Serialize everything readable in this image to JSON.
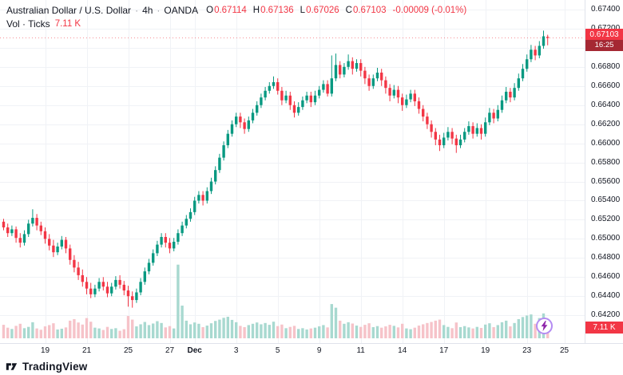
{
  "header": {
    "symbol": "Australian Dollar / U.S. Dollar",
    "sep": "·",
    "interval": "4h",
    "venue": "OANDA",
    "ohlc": {
      "o_label": "O",
      "o": "0.67114",
      "h_label": "H",
      "h": "0.67136",
      "l_label": "L",
      "l": "0.67026",
      "c_label": "C",
      "c": "0.67103",
      "change": "-0.00009 (-0.01%)"
    },
    "indicator": {
      "name": "Vol · Ticks",
      "value": "7.11 K"
    }
  },
  "price_axis": {
    "last_price": "0.67103",
    "countdown": "16:25",
    "volume_badge": "7.11 K"
  },
  "footer": {
    "brand": "TradingView"
  },
  "colors": {
    "up": "#089981",
    "down": "#f23645",
    "vol_up": "#a8d9d0",
    "vol_down": "#f6c3c9",
    "grid": "#f0f2f6",
    "axis_text": "#131722",
    "label_bg": "#f23645"
  },
  "chart_data": {
    "type": "candlestick",
    "title": "AUD/USD · 4h · OANDA",
    "pair": "AUD/USD",
    "interval": "4h",
    "legend": [
      "open",
      "high",
      "low",
      "close",
      "tick_volume"
    ],
    "price_ticks": [
      "0.67400",
      "0.67200",
      "0.67000",
      "0.66800",
      "0.66600",
      "0.66400",
      "0.66200",
      "0.66000",
      "0.65800",
      "0.65600",
      "0.65400",
      "0.65200",
      "0.65000",
      "0.64800",
      "0.64600",
      "0.64400",
      "0.64200"
    ],
    "x_ticks": [
      {
        "label": "19",
        "i": 10
      },
      {
        "label": "21",
        "i": 20
      },
      {
        "label": "25",
        "i": 30
      },
      {
        "label": "27",
        "i": 40
      },
      {
        "label": "Dec",
        "i": 46,
        "bold": true
      },
      {
        "label": "3",
        "i": 56
      },
      {
        "label": "5",
        "i": 66
      },
      {
        "label": "9",
        "i": 76
      },
      {
        "label": "11",
        "i": 86
      },
      {
        "label": "14",
        "i": 96
      },
      {
        "label": "17",
        "i": 106
      },
      {
        "label": "19",
        "i": 116
      },
      {
        "label": "23",
        "i": 126
      },
      {
        "label": "25",
        "i": 135
      }
    ],
    "last": {
      "open": 0.67114,
      "high": 0.67136,
      "low": 0.67026,
      "close": 0.67103,
      "volume": 7110
    },
    "candles": [
      [
        0.6518,
        0.6521,
        0.6509,
        0.6512,
        5200
      ],
      [
        0.6512,
        0.6516,
        0.6502,
        0.6506,
        4100
      ],
      [
        0.6506,
        0.6514,
        0.6503,
        0.651,
        3600
      ],
      [
        0.651,
        0.6513,
        0.6496,
        0.6501,
        4800
      ],
      [
        0.6501,
        0.6506,
        0.6491,
        0.6496,
        5600
      ],
      [
        0.6496,
        0.6509,
        0.6493,
        0.6505,
        3900
      ],
      [
        0.6505,
        0.652,
        0.6502,
        0.6516,
        4400
      ],
      [
        0.6516,
        0.6531,
        0.6513,
        0.6522,
        6200
      ],
      [
        0.6522,
        0.6526,
        0.6509,
        0.6514,
        3800
      ],
      [
        0.6514,
        0.6518,
        0.6504,
        0.6508,
        3300
      ],
      [
        0.6508,
        0.6512,
        0.6495,
        0.65,
        4600
      ],
      [
        0.65,
        0.6505,
        0.6488,
        0.6493,
        5100
      ],
      [
        0.6493,
        0.6499,
        0.6481,
        0.6486,
        5800
      ],
      [
        0.6486,
        0.6496,
        0.6483,
        0.6492,
        3400
      ],
      [
        0.6492,
        0.6503,
        0.6489,
        0.6499,
        3700
      ],
      [
        0.6499,
        0.6502,
        0.6485,
        0.649,
        4200
      ],
      [
        0.649,
        0.6494,
        0.6473,
        0.6478,
        6800
      ],
      [
        0.6478,
        0.6483,
        0.6465,
        0.647,
        7400
      ],
      [
        0.647,
        0.6476,
        0.6457,
        0.6462,
        6100
      ],
      [
        0.6462,
        0.6468,
        0.645,
        0.6455,
        5300
      ],
      [
        0.6455,
        0.646,
        0.6442,
        0.6448,
        7800
      ],
      [
        0.6448,
        0.6454,
        0.6438,
        0.6442,
        6400
      ],
      [
        0.6442,
        0.6452,
        0.6439,
        0.6448,
        4100
      ],
      [
        0.6448,
        0.6459,
        0.6445,
        0.6455,
        3800
      ],
      [
        0.6455,
        0.646,
        0.6446,
        0.645,
        3200
      ],
      [
        0.645,
        0.6455,
        0.6439,
        0.6443,
        4400
      ],
      [
        0.6443,
        0.6454,
        0.644,
        0.645,
        3600
      ],
      [
        0.645,
        0.6461,
        0.6447,
        0.6457,
        3900
      ],
      [
        0.6457,
        0.6462,
        0.6448,
        0.6452,
        2900
      ],
      [
        0.6452,
        0.6456,
        0.6441,
        0.6446,
        3500
      ],
      [
        0.6446,
        0.6451,
        0.6429,
        0.644,
        8600
      ],
      [
        0.644,
        0.6445,
        0.6428,
        0.6436,
        7200
      ],
      [
        0.6436,
        0.6448,
        0.6433,
        0.6444,
        4600
      ],
      [
        0.6444,
        0.6459,
        0.6441,
        0.6455,
        5400
      ],
      [
        0.6455,
        0.647,
        0.6452,
        0.6466,
        6300
      ],
      [
        0.6466,
        0.6479,
        0.6463,
        0.6475,
        5100
      ],
      [
        0.6475,
        0.6489,
        0.6472,
        0.6485,
        5700
      ],
      [
        0.6485,
        0.6498,
        0.6482,
        0.6494,
        6600
      ],
      [
        0.6494,
        0.6506,
        0.6491,
        0.6502,
        5900
      ],
      [
        0.6502,
        0.6506,
        0.6491,
        0.6496,
        4200
      ],
      [
        0.6496,
        0.6501,
        0.6485,
        0.649,
        4700
      ],
      [
        0.649,
        0.6501,
        0.6487,
        0.6497,
        3800
      ],
      [
        0.6497,
        0.651,
        0.6494,
        0.6506,
        28400
      ],
      [
        0.6506,
        0.6518,
        0.6503,
        0.6514,
        12600
      ],
      [
        0.6514,
        0.6525,
        0.6511,
        0.6521,
        6800
      ],
      [
        0.6521,
        0.6532,
        0.6518,
        0.6528,
        5400
      ],
      [
        0.6528,
        0.6544,
        0.6525,
        0.654,
        6100
      ],
      [
        0.654,
        0.655,
        0.6537,
        0.6546,
        5600
      ],
      [
        0.6546,
        0.655,
        0.6535,
        0.654,
        4300
      ],
      [
        0.654,
        0.6554,
        0.6537,
        0.655,
        4900
      ],
      [
        0.655,
        0.6564,
        0.6547,
        0.656,
        5800
      ],
      [
        0.656,
        0.6576,
        0.6557,
        0.6572,
        6700
      ],
      [
        0.6572,
        0.6589,
        0.6569,
        0.6585,
        7200
      ],
      [
        0.6585,
        0.6602,
        0.6582,
        0.6598,
        7900
      ],
      [
        0.6598,
        0.6614,
        0.6595,
        0.661,
        8300
      ],
      [
        0.661,
        0.6624,
        0.6607,
        0.662,
        7100
      ],
      [
        0.662,
        0.6632,
        0.6617,
        0.6628,
        6200
      ],
      [
        0.6628,
        0.6632,
        0.6616,
        0.6622,
        4800
      ],
      [
        0.6622,
        0.6626,
        0.661,
        0.6615,
        4300
      ],
      [
        0.6615,
        0.6628,
        0.6612,
        0.6624,
        5100
      ],
      [
        0.6624,
        0.6636,
        0.6621,
        0.6632,
        5600
      ],
      [
        0.6632,
        0.6644,
        0.6629,
        0.664,
        6100
      ],
      [
        0.664,
        0.6652,
        0.6637,
        0.6648,
        5400
      ],
      [
        0.6648,
        0.6659,
        0.6645,
        0.6655,
        5900
      ],
      [
        0.6655,
        0.6664,
        0.6652,
        0.666,
        5200
      ],
      [
        0.666,
        0.667,
        0.6657,
        0.6664,
        6400
      ],
      [
        0.6664,
        0.6668,
        0.6651,
        0.6655,
        4700
      ],
      [
        0.6655,
        0.6659,
        0.664,
        0.6645,
        5300
      ],
      [
        0.6645,
        0.6655,
        0.6642,
        0.665,
        3900
      ],
      [
        0.665,
        0.6654,
        0.6635,
        0.664,
        4400
      ],
      [
        0.664,
        0.6644,
        0.6627,
        0.6632,
        4800
      ],
      [
        0.6632,
        0.6643,
        0.6629,
        0.6638,
        3600
      ],
      [
        0.6638,
        0.6649,
        0.6635,
        0.6645,
        3900
      ],
      [
        0.6645,
        0.6654,
        0.6642,
        0.665,
        3400
      ],
      [
        0.665,
        0.6654,
        0.6638,
        0.6643,
        3800
      ],
      [
        0.6643,
        0.6655,
        0.664,
        0.665,
        4100
      ],
      [
        0.665,
        0.666,
        0.6647,
        0.6656,
        4600
      ],
      [
        0.6656,
        0.6666,
        0.6653,
        0.6662,
        5100
      ],
      [
        0.6662,
        0.6666,
        0.6649,
        0.6652,
        4200
      ],
      [
        0.6652,
        0.6692,
        0.6649,
        0.6668,
        13200
      ],
      [
        0.6668,
        0.6694,
        0.6665,
        0.6682,
        11800
      ],
      [
        0.6682,
        0.6686,
        0.6668,
        0.6672,
        6800
      ],
      [
        0.6672,
        0.6684,
        0.6669,
        0.668,
        5600
      ],
      [
        0.668,
        0.6693,
        0.6677,
        0.6686,
        6200
      ],
      [
        0.6686,
        0.669,
        0.6672,
        0.6678,
        5700
      ],
      [
        0.6678,
        0.6688,
        0.6675,
        0.6684,
        4900
      ],
      [
        0.6684,
        0.6688,
        0.667,
        0.6676,
        4400
      ],
      [
        0.6676,
        0.668,
        0.6662,
        0.6668,
        5200
      ],
      [
        0.6668,
        0.6672,
        0.6655,
        0.666,
        5800
      ],
      [
        0.666,
        0.6672,
        0.6657,
        0.6668,
        4300
      ],
      [
        0.6668,
        0.6679,
        0.6665,
        0.6674,
        4700
      ],
      [
        0.6674,
        0.6678,
        0.666,
        0.6666,
        4100
      ],
      [
        0.6666,
        0.667,
        0.6652,
        0.6658,
        4600
      ],
      [
        0.6658,
        0.6662,
        0.6644,
        0.665,
        5200
      ],
      [
        0.665,
        0.6661,
        0.6647,
        0.6656,
        4800
      ],
      [
        0.6656,
        0.666,
        0.6642,
        0.6648,
        4200
      ],
      [
        0.6648,
        0.6652,
        0.6634,
        0.664,
        5600
      ],
      [
        0.664,
        0.6651,
        0.6637,
        0.6646,
        3800
      ],
      [
        0.6646,
        0.6656,
        0.6643,
        0.6652,
        3500
      ],
      [
        0.6652,
        0.6656,
        0.6639,
        0.6644,
        4100
      ],
      [
        0.6644,
        0.6648,
        0.6631,
        0.6636,
        4900
      ],
      [
        0.6636,
        0.664,
        0.6623,
        0.6628,
        5400
      ],
      [
        0.6628,
        0.6632,
        0.6615,
        0.662,
        5900
      ],
      [
        0.662,
        0.6624,
        0.6606,
        0.6612,
        6300
      ],
      [
        0.6612,
        0.6616,
        0.6598,
        0.6604,
        6800
      ],
      [
        0.6604,
        0.6609,
        0.6592,
        0.6598,
        7200
      ],
      [
        0.6598,
        0.6611,
        0.6595,
        0.6606,
        5100
      ],
      [
        0.6606,
        0.6617,
        0.6603,
        0.6612,
        4400
      ],
      [
        0.6612,
        0.6616,
        0.6599,
        0.6605,
        3900
      ],
      [
        0.6605,
        0.6609,
        0.659,
        0.6598,
        6100
      ],
      [
        0.6598,
        0.6609,
        0.6595,
        0.6604,
        4300
      ],
      [
        0.6604,
        0.6616,
        0.6601,
        0.6612,
        4700
      ],
      [
        0.6612,
        0.6623,
        0.6609,
        0.6618,
        4200
      ],
      [
        0.6618,
        0.6622,
        0.6605,
        0.661,
        3800
      ],
      [
        0.661,
        0.6621,
        0.6607,
        0.6616,
        4400
      ],
      [
        0.6616,
        0.662,
        0.6604,
        0.661,
        4000
      ],
      [
        0.661,
        0.6627,
        0.6607,
        0.6622,
        5300
      ],
      [
        0.6622,
        0.6637,
        0.6619,
        0.6632,
        5800
      ],
      [
        0.6632,
        0.6636,
        0.6621,
        0.6626,
        4300
      ],
      [
        0.6626,
        0.664,
        0.6623,
        0.6635,
        5100
      ],
      [
        0.6635,
        0.665,
        0.6632,
        0.6645,
        6200
      ],
      [
        0.6645,
        0.6659,
        0.6642,
        0.6654,
        6800
      ],
      [
        0.6654,
        0.6658,
        0.6643,
        0.6648,
        4600
      ],
      [
        0.6648,
        0.6663,
        0.6645,
        0.6658,
        5900
      ],
      [
        0.6658,
        0.6673,
        0.6655,
        0.6668,
        7400
      ],
      [
        0.6668,
        0.6683,
        0.6665,
        0.6678,
        8200
      ],
      [
        0.6678,
        0.6693,
        0.6675,
        0.6688,
        8800
      ],
      [
        0.6688,
        0.6703,
        0.6685,
        0.6698,
        9200
      ],
      [
        0.6698,
        0.6702,
        0.6687,
        0.6692,
        5600
      ],
      [
        0.6692,
        0.6707,
        0.6689,
        0.6702,
        7800
      ],
      [
        0.6702,
        0.6718,
        0.6699,
        0.6712,
        9600
      ],
      [
        0.67114,
        0.67136,
        0.67026,
        0.67103,
        7110
      ]
    ]
  }
}
